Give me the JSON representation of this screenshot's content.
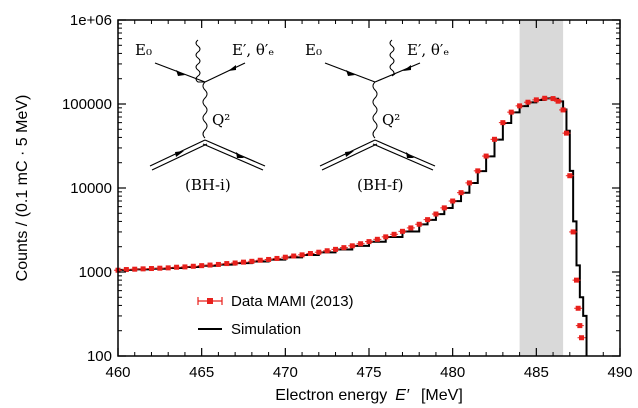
{
  "chart_data": {
    "type": "line",
    "title": "",
    "xlabel_prefix": "Electron energy",
    "xlabel_var": "E′",
    "xlabel_unit": "[MeV]",
    "ylabel": "Counts / (0.1 mC · 5 MeV)",
    "xlim": [
      460,
      490
    ],
    "ylim": [
      100,
      1000000
    ],
    "yscale": "log",
    "grid": false,
    "legend_position": "bottom-left",
    "x_ticks": [
      "460",
      "465",
      "470",
      "475",
      "480",
      "485",
      "490"
    ],
    "y_ticks": [
      "100",
      "1000",
      "10000",
      "100000",
      "1e+06"
    ],
    "shaded_region": {
      "x": [
        484,
        486.6
      ],
      "color": "#d9d9d9"
    },
    "series": [
      {
        "name": "Data MAMI (2013)",
        "style": "markers",
        "color": "#e8201c",
        "points": [
          [
            460.0,
            1050
          ],
          [
            460.5,
            1070
          ],
          [
            461.0,
            1080
          ],
          [
            461.5,
            1090
          ],
          [
            462.0,
            1100
          ],
          [
            462.5,
            1110
          ],
          [
            463.0,
            1120
          ],
          [
            463.5,
            1140
          ],
          [
            464.0,
            1150
          ],
          [
            464.5,
            1170
          ],
          [
            465.0,
            1190
          ],
          [
            465.5,
            1210
          ],
          [
            466.0,
            1230
          ],
          [
            466.5,
            1260
          ],
          [
            467.0,
            1280
          ],
          [
            467.5,
            1310
          ],
          [
            468.0,
            1340
          ],
          [
            468.5,
            1380
          ],
          [
            469.0,
            1410
          ],
          [
            469.5,
            1450
          ],
          [
            470.0,
            1500
          ],
          [
            470.5,
            1550
          ],
          [
            471.0,
            1600
          ],
          [
            471.5,
            1660
          ],
          [
            472.0,
            1720
          ],
          [
            472.5,
            1790
          ],
          [
            473.0,
            1860
          ],
          [
            473.5,
            1950
          ],
          [
            474.0,
            2050
          ],
          [
            474.5,
            2170
          ],
          [
            475.0,
            2300
          ],
          [
            475.5,
            2450
          ],
          [
            476.0,
            2620
          ],
          [
            476.5,
            2810
          ],
          [
            477.0,
            3050
          ],
          [
            477.5,
            3350
          ],
          [
            478.0,
            3700
          ],
          [
            478.5,
            4200
          ],
          [
            479.0,
            4900
          ],
          [
            479.5,
            5800
          ],
          [
            480.0,
            7000
          ],
          [
            480.5,
            8800
          ],
          [
            481.0,
            11500
          ],
          [
            481.5,
            16000
          ],
          [
            482.0,
            24000
          ],
          [
            482.5,
            38000
          ],
          [
            483.0,
            60000
          ],
          [
            483.5,
            80000
          ],
          [
            484.0,
            95000
          ],
          [
            484.5,
            105000
          ],
          [
            485.0,
            112000
          ],
          [
            485.5,
            117000
          ],
          [
            486.0,
            116000
          ],
          [
            486.3,
            108000
          ],
          [
            486.6,
            85000
          ],
          [
            486.8,
            45000
          ],
          [
            487.0,
            14000
          ],
          [
            487.2,
            3000
          ],
          [
            487.4,
            800
          ],
          [
            487.5,
            370
          ],
          [
            487.6,
            230
          ],
          [
            487.7,
            165
          ]
        ]
      },
      {
        "name": "Simulation",
        "style": "line",
        "color": "#000000",
        "points": [
          [
            460.0,
            1060
          ],
          [
            461.0,
            1075
          ],
          [
            462.0,
            1095
          ],
          [
            463.0,
            1115
          ],
          [
            464.0,
            1145
          ],
          [
            465.0,
            1185
          ],
          [
            466.0,
            1225
          ],
          [
            467.0,
            1275
          ],
          [
            468.0,
            1335
          ],
          [
            469.0,
            1405
          ],
          [
            470.0,
            1495
          ],
          [
            471.0,
            1595
          ],
          [
            472.0,
            1715
          ],
          [
            473.0,
            1855
          ],
          [
            474.0,
            2045
          ],
          [
            475.0,
            2290
          ],
          [
            476.0,
            2610
          ],
          [
            477.0,
            3040
          ],
          [
            478.0,
            3690
          ],
          [
            478.5,
            4180
          ],
          [
            479.0,
            4880
          ],
          [
            479.5,
            5780
          ],
          [
            480.0,
            6980
          ],
          [
            480.5,
            8770
          ],
          [
            481.0,
            11450
          ],
          [
            481.5,
            15900
          ],
          [
            482.0,
            23800
          ],
          [
            482.5,
            37600
          ],
          [
            483.0,
            59500
          ],
          [
            483.5,
            79500
          ],
          [
            484.0,
            94500
          ],
          [
            484.5,
            104500
          ],
          [
            485.0,
            111500
          ],
          [
            485.5,
            116500
          ],
          [
            486.0,
            115500
          ],
          [
            486.3,
            107500
          ],
          [
            486.6,
            86000
          ],
          [
            486.8,
            48000
          ],
          [
            487.0,
            16000
          ],
          [
            487.2,
            4000
          ],
          [
            487.4,
            1200
          ],
          [
            487.6,
            500
          ],
          [
            487.8,
            300
          ],
          [
            488.0,
            100
          ]
        ]
      }
    ],
    "legend": [
      {
        "label": "Data MAMI (2013)",
        "style": "markers"
      },
      {
        "label": "Simulation",
        "style": "line"
      }
    ],
    "diagrams": [
      {
        "caption": "(BH-i)",
        "in_label": "E₀",
        "out_label": "E′, θ′ₑ",
        "photon_label": "Q²"
      },
      {
        "caption": "(BH-f)",
        "in_label": "E₀",
        "out_label": "E′, θ′ₑ",
        "photon_label": "Q²"
      }
    ]
  }
}
